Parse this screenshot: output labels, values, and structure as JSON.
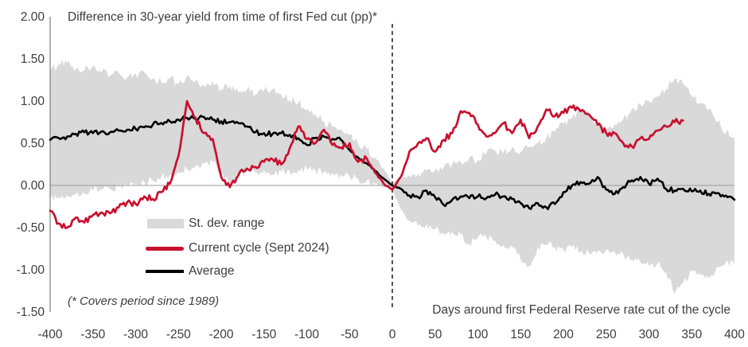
{
  "colors": {
    "band": "#d9d9d9",
    "current": "#c8102e",
    "average": "#000000",
    "zero_line": "#9b9b9b",
    "axis": "#7f7f7f",
    "dashed": "#1a1a1a",
    "text": "#3d3d3d"
  },
  "chart_data": {
    "type": "line",
    "title": "Difference in 30-year yield from time of first Fed cut (pp)*",
    "footnote": "(* Covers period since 1989)",
    "xlabel": "Days around first Federal Reserve rate cut of the cycle",
    "legend": {
      "band": "St. dev. range",
      "current": "Current cycle (Sept 2024)",
      "average": "Average"
    },
    "x_range": [
      -400,
      400
    ],
    "x_step": 10,
    "y_range": [
      -1.5,
      2.0
    ],
    "x_ticks": [
      -400,
      -350,
      -300,
      -250,
      -200,
      -150,
      -100,
      -50,
      0,
      50,
      100,
      150,
      200,
      250,
      300,
      350,
      400
    ],
    "y_ticks": [
      "2.00",
      "1.50",
      "1.00",
      "0.50",
      "0.00",
      "-0.50",
      "-1.00",
      "-1.50"
    ],
    "reference_lines": {
      "horizontal_at": 0,
      "vertical_dashed_at": 0
    },
    "series": [
      {
        "name": "St. dev. range",
        "type": "band",
        "upper": [
          1.36,
          1.44,
          1.45,
          1.38,
          1.36,
          1.42,
          1.34,
          1.3,
          1.34,
          1.28,
          1.32,
          1.34,
          1.27,
          1.23,
          1.27,
          1.2,
          1.3,
          1.24,
          1.18,
          1.24,
          1.14,
          1.18,
          1.1,
          1.14,
          1.08,
          1.12,
          1.14,
          1.08,
          1.02,
          0.98,
          0.9,
          0.85,
          0.76,
          0.7,
          0.66,
          0.6,
          0.5,
          0.43,
          0.33,
          0.2,
          0.03,
          0.08,
          0.11,
          0.14,
          0.17,
          0.18,
          0.21,
          0.25,
          0.28,
          0.33,
          0.3,
          0.38,
          0.42,
          0.38,
          0.45,
          0.4,
          0.46,
          0.5,
          0.56,
          0.64,
          0.73,
          0.8,
          0.9,
          0.84,
          0.73,
          0.68,
          0.73,
          0.79,
          0.9,
          0.96,
          1.0,
          1.06,
          1.15,
          1.26,
          1.2,
          1.06,
          0.98,
          0.9,
          0.75,
          0.63,
          0.57
        ],
        "lower": [
          -0.16,
          -0.14,
          -0.12,
          -0.1,
          -0.09,
          -0.07,
          -0.05,
          -0.04,
          -0.02,
          0.0,
          0.02,
          0.04,
          0.06,
          0.1,
          0.13,
          0.16,
          0.19,
          0.23,
          0.26,
          0.28,
          0.12,
          0.03,
          0.12,
          0.17,
          0.15,
          0.18,
          0.13,
          0.16,
          0.16,
          0.18,
          0.2,
          0.18,
          0.16,
          0.15,
          0.13,
          0.11,
          0.08,
          0.05,
          0.02,
          -0.02,
          -0.05,
          -0.28,
          -0.42,
          -0.48,
          -0.46,
          -0.52,
          -0.58,
          -0.55,
          -0.58,
          -0.7,
          -0.62,
          -0.61,
          -0.65,
          -0.7,
          -0.73,
          -0.88,
          -0.95,
          -0.73,
          -0.7,
          -0.73,
          -0.76,
          -0.73,
          -0.78,
          -0.8,
          -0.78,
          -0.76,
          -0.78,
          -0.81,
          -0.88,
          -0.91,
          -0.95,
          -0.93,
          -1.02,
          -1.28,
          -1.16,
          -1.02,
          -1.06,
          -1.1,
          -0.96,
          -0.91,
          -0.93
        ]
      },
      {
        "name": "Current cycle (Sept 2024)",
        "type": "line",
        "values": [
          -0.3,
          -0.45,
          -0.5,
          -0.38,
          -0.44,
          -0.35,
          -0.32,
          -0.33,
          -0.26,
          -0.2,
          -0.22,
          -0.13,
          -0.16,
          -0.08,
          0.02,
          0.35,
          1.0,
          0.8,
          0.62,
          0.55,
          0.1,
          -0.02,
          0.12,
          0.2,
          0.22,
          0.28,
          0.31,
          0.25,
          0.44,
          0.7,
          0.55,
          0.5,
          0.66,
          0.48,
          0.45,
          0.5,
          0.28,
          0.32,
          0.15,
          0.02,
          -0.05,
          0.1,
          0.4,
          0.5,
          0.56,
          0.4,
          0.54,
          0.62,
          0.88,
          0.86,
          0.72,
          0.58,
          0.62,
          0.74,
          0.62,
          0.78,
          0.56,
          0.7,
          0.9,
          0.82,
          0.86,
          0.92,
          0.88,
          0.84,
          0.72,
          0.62,
          0.62,
          0.5,
          0.46,
          0.56,
          0.55,
          0.65,
          0.7,
          0.75,
          0.77,
          null,
          null,
          null,
          null,
          null,
          null
        ]
      },
      {
        "name": "Average",
        "type": "line",
        "values": [
          0.54,
          0.56,
          0.58,
          0.61,
          0.63,
          0.62,
          0.64,
          0.63,
          0.65,
          0.66,
          0.67,
          0.69,
          0.72,
          0.74,
          0.76,
          0.78,
          0.8,
          0.79,
          0.81,
          0.78,
          0.76,
          0.75,
          0.74,
          0.7,
          0.63,
          0.62,
          0.61,
          0.62,
          0.6,
          0.56,
          0.48,
          0.56,
          0.58,
          0.55,
          0.54,
          0.42,
          0.33,
          0.26,
          0.17,
          0.08,
          0.0,
          -0.04,
          -0.12,
          -0.14,
          -0.06,
          -0.14,
          -0.23,
          -0.17,
          -0.13,
          -0.15,
          -0.13,
          -0.15,
          -0.11,
          -0.13,
          -0.16,
          -0.21,
          -0.27,
          -0.21,
          -0.26,
          -0.22,
          -0.08,
          0.0,
          0.04,
          0.02,
          0.1,
          -0.05,
          -0.1,
          -0.02,
          0.06,
          0.1,
          0.02,
          0.08,
          -0.04,
          -0.06,
          -0.04,
          -0.07,
          -0.06,
          -0.1,
          -0.09,
          -0.12,
          -0.17
        ]
      }
    ]
  }
}
